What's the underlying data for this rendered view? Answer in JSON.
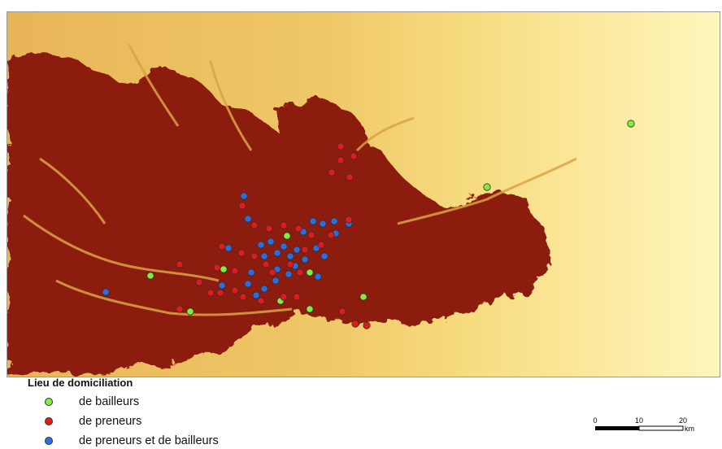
{
  "legend": {
    "title": "Lieu de domiciliation",
    "items": [
      {
        "id": "bailleurs",
        "label": "de bailleurs",
        "color": "#7cf03c"
      },
      {
        "id": "preneurs",
        "label": "de preneurs",
        "color": "#e01b1b"
      },
      {
        "id": "both",
        "label": "de preneurs et de bailleurs",
        "color": "#2a6ee0"
      }
    ]
  },
  "scale": {
    "ticks": [
      "0",
      "10",
      "20"
    ],
    "unit": "km"
  },
  "colors": {
    "lowland": "#8c1a0c",
    "mid": "#d79a35",
    "high": "#fbe78a",
    "highest": "#fffdd0"
  }
}
